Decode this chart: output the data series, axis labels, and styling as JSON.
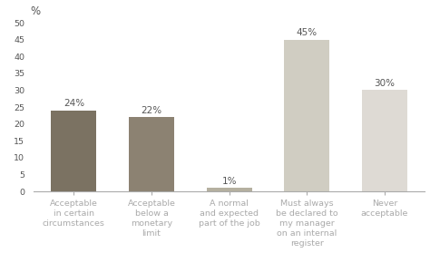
{
  "categories": [
    "Acceptable\nin certain\ncircumstances",
    "Acceptable\nbelow a\nmonetary\nlimit",
    "A normal\nand expected\npart of the job",
    "Must always\nbe declared to\nmy manager\non an internal\nregister",
    "Never\nacceptable"
  ],
  "values": [
    24,
    22,
    1,
    45,
    30
  ],
  "bar_colors": [
    "#7b7262",
    "#8c8272",
    "#b5b0a0",
    "#d0cdc2",
    "#dedad4"
  ],
  "labels": [
    "24%",
    "22%",
    "1%",
    "45%",
    "30%"
  ],
  "ylabel": "%",
  "ylim": [
    0,
    50
  ],
  "yticks": [
    0,
    5,
    10,
    15,
    20,
    25,
    30,
    35,
    40,
    45,
    50
  ],
  "background_color": "#ffffff",
  "bar_width": 0.58,
  "label_fontsize": 7.5,
  "tick_fontsize": 6.8,
  "ylabel_fontsize": 8.5,
  "text_color": "#555555",
  "spine_color": "#aaaaaa"
}
